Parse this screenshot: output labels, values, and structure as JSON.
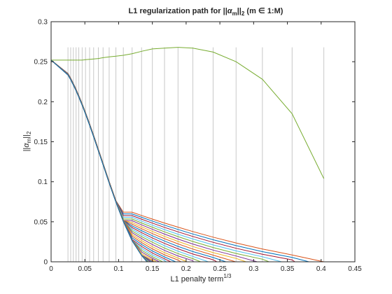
{
  "chart_data": {
    "type": "line",
    "title_parts": {
      "prefix": "L1 regularization path for ||",
      "alpha": "α",
      "alpha_sub": "m",
      "norm_close": "||",
      "norm_sub": "2",
      "suffix": " (m ∈ 1:M)"
    },
    "xlabel_parts": {
      "base": "L1 penalty term",
      "sup": "1/3"
    },
    "ylabel_parts": {
      "bars": "||",
      "alpha": "α",
      "alpha_sub": "m",
      "norm_close": "||",
      "norm_sub": "2"
    },
    "xlim": [
      0,
      0.45
    ],
    "ylim": [
      0,
      0.3
    ],
    "xticks": [
      0,
      0.05,
      0.1,
      0.15,
      0.2,
      0.25,
      0.3,
      0.35,
      0.4,
      0.45
    ],
    "xtick_labels": [
      "0",
      "0.05",
      "0.1",
      "0.15",
      "0.2",
      "0.25",
      "0.3",
      "0.35",
      "0.4",
      "0.45"
    ],
    "yticks": [
      0,
      0.05,
      0.1,
      0.15,
      0.2,
      0.25,
      0.3
    ],
    "ytick_labels": [
      "0",
      "0.05",
      "0.1",
      "0.15",
      "0.2",
      "0.25",
      "0.3"
    ],
    "grid": false,
    "vertical_lines": {
      "x": [
        0.025,
        0.029,
        0.033,
        0.037,
        0.041,
        0.046,
        0.051,
        0.057,
        0.063,
        0.07,
        0.077,
        0.086,
        0.096,
        0.107,
        0.12,
        0.134,
        0.15,
        0.168,
        0.188,
        0.21,
        0.24,
        0.274,
        0.313,
        0.357,
        0.404
      ],
      "top": 0.268,
      "color": "#c8c8c8"
    },
    "path_x": [
      0,
      0.025,
      0.029,
      0.033,
      0.037,
      0.041,
      0.046,
      0.051,
      0.057,
      0.063,
      0.07,
      0.077,
      0.086,
      0.096,
      0.107,
      0.12,
      0.134,
      0.15,
      0.168,
      0.188,
      0.21,
      0.24,
      0.274,
      0.313,
      0.357,
      0.404
    ],
    "bundle": {
      "count": 30,
      "start_value": 0.252,
      "inner_drop_x": 0.142,
      "outer_drop_x": 0.404,
      "tail_start_x": 0.12,
      "colors": [
        "#0072bd",
        "#d95319",
        "#edb120",
        "#7e2f8e",
        "#77ac30",
        "#4dbeee",
        "#a2142f"
      ]
    },
    "series": [
      {
        "x": [
          0,
          0.025,
          0.029,
          0.033,
          0.037,
          0.041,
          0.046,
          0.051,
          0.057,
          0.063,
          0.07,
          0.077,
          0.086,
          0.096,
          0.107,
          0.12,
          0.134,
          0.15,
          0.168,
          0.188,
          0.21,
          0.24,
          0.274,
          0.313,
          0.357,
          0.404
        ],
        "values": [
          0.252,
          0.252,
          0.252,
          0.252,
          0.252,
          0.252,
          0.252,
          0.2525,
          0.253,
          0.2535,
          0.254,
          0.255,
          0.256,
          0.257,
          0.258,
          0.26,
          0.263,
          0.266,
          0.267,
          0.268,
          0.267,
          0.262,
          0.25,
          0.228,
          0.185,
          0.104
        ],
        "color": "#77ac30"
      }
    ]
  }
}
